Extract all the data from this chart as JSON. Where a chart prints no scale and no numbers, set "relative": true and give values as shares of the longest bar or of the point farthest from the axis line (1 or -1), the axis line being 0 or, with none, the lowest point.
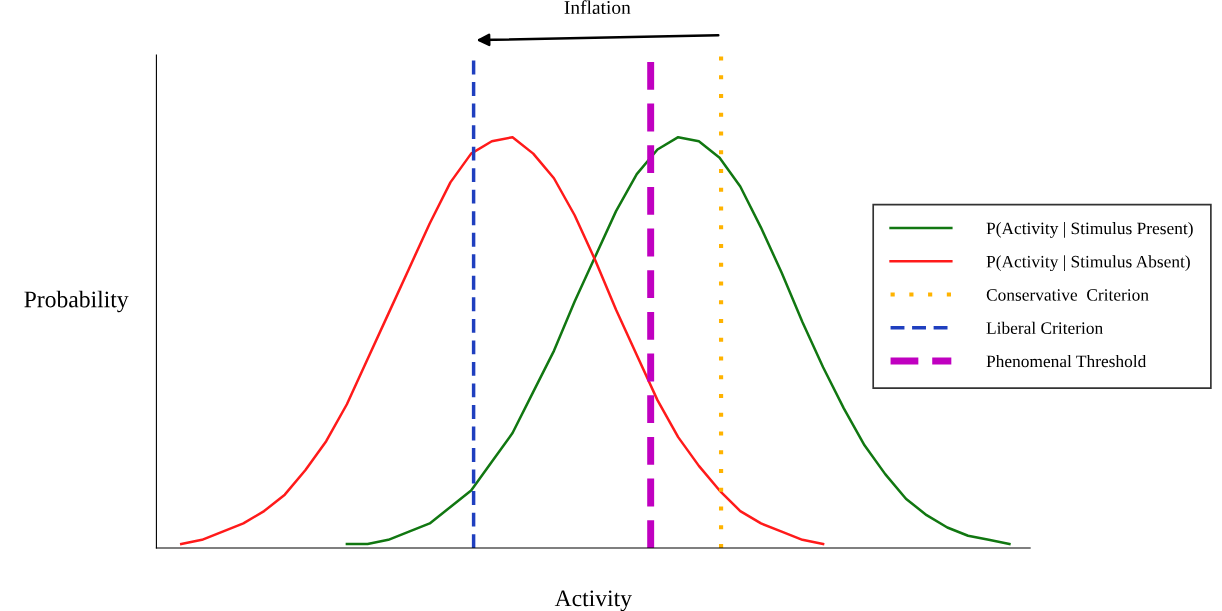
{
  "chart_data": {
    "type": "line",
    "relative": true,
    "xlabel": "Activity",
    "ylabel": "Probability",
    "categories": [
      null,
      null,
      null,
      null,
      null,
      null,
      null,
      null,
      null,
      null,
      null,
      null,
      null,
      null,
      null,
      null,
      null,
      null,
      null,
      null,
      null,
      null,
      null,
      null,
      null,
      null,
      null,
      null,
      null,
      null,
      null,
      null,
      null,
      null,
      null,
      null,
      null,
      null,
      null,
      null,
      null
    ],
    "series": [
      {
        "name": "P(Activity | Stimulus Present)",
        "color": "#117711",
        "values": [
          null,
          null,
          null,
          null,
          null,
          null,
          null,
          null,
          0.01,
          0.01,
          0.02,
          0.04,
          0.06,
          0.1,
          0.14,
          0.21,
          0.28,
          0.38,
          0.48,
          0.6,
          0.71,
          0.82,
          0.91,
          0.97,
          1.0,
          0.99,
          0.95,
          0.88,
          0.78,
          0.67,
          0.55,
          0.44,
          0.34,
          0.25,
          0.18,
          0.12,
          0.08,
          0.05,
          0.03,
          0.02,
          0.01
        ]
      },
      {
        "name": "P(Activity | Stimulus Absent)",
        "color": "#ff1a1a",
        "values": [
          0.01,
          0.02,
          0.04,
          0.06,
          0.09,
          0.13,
          0.19,
          0.26,
          0.35,
          0.46,
          0.57,
          0.68,
          0.79,
          0.89,
          0.96,
          0.99,
          1.0,
          0.96,
          0.9,
          0.81,
          0.7,
          0.58,
          0.47,
          0.36,
          0.27,
          0.2,
          0.14,
          0.09,
          0.06,
          0.04,
          0.02,
          0.01,
          null,
          null,
          null,
          null,
          null,
          null,
          null,
          null,
          null
        ]
      }
    ],
    "ref_lines": [
      {
        "axis": "x",
        "label": "Conservative  Criterion",
        "color": "#ffb300",
        "line_style": "dotted"
      },
      {
        "axis": "x",
        "label": "Liberal Criterion",
        "color": "#1f3fbf",
        "line_style": "dashed"
      },
      {
        "axis": "x",
        "label": "Phenomenal Threshold",
        "color": "#c000c0",
        "line_style": "dashed"
      }
    ],
    "annotations": [
      "Inflation"
    ],
    "legend": "right",
    "marker": "none",
    "line_style": "solid"
  }
}
